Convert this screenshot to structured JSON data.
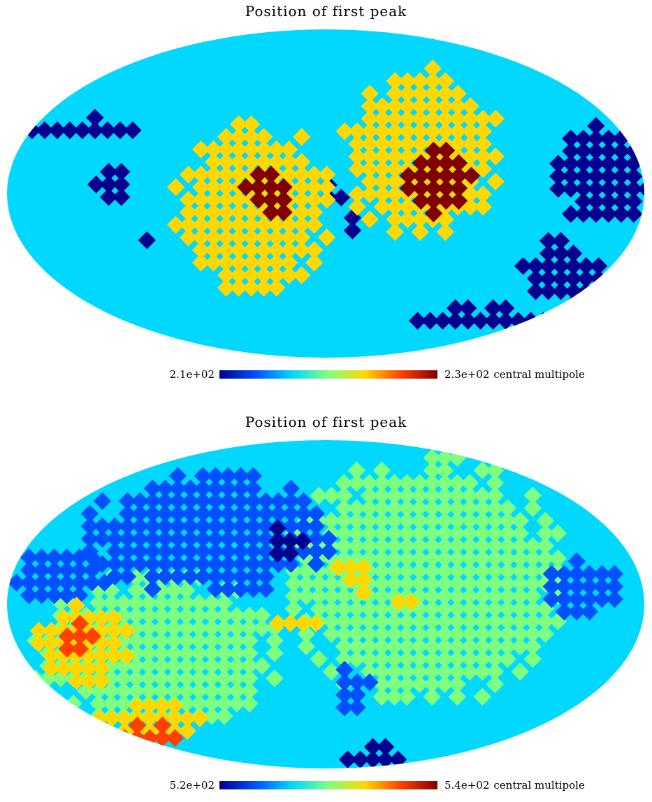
{
  "colors": {
    "ocean": "#00d8ff",
    "colormap": [
      "#00008f",
      "#0050ff",
      "#00d8ff",
      "#7fff7f",
      "#ffd800",
      "#ff4000",
      "#800000"
    ]
  },
  "chart_data": [
    {
      "type": "heatmap",
      "projection": "mollweide",
      "title": "Position of first peak",
      "colorbar": {
        "min_label": "2.1e+02",
        "max_label": "2.3e+02",
        "unit": "central multipole"
      },
      "regions": [
        {
          "color": "#00008f",
          "cx": -0.82,
          "cy": 0.42,
          "rx": 0.2,
          "ry": 0.08
        },
        {
          "color": "#00008f",
          "cx": -0.68,
          "cy": 0.08,
          "rx": 0.06,
          "ry": 0.09
        },
        {
          "color": "#00008f",
          "cx": -0.58,
          "cy": -0.22,
          "rx": 0.04,
          "ry": 0.05
        },
        {
          "color": "#00008f",
          "cx": 0.85,
          "cy": 0.15,
          "rx": 0.14,
          "ry": 0.3
        },
        {
          "color": "#00008f",
          "cx": 0.72,
          "cy": -0.45,
          "rx": 0.12,
          "ry": 0.2
        },
        {
          "color": "#00008f",
          "cx": 0.45,
          "cy": -0.72,
          "rx": 0.26,
          "ry": 0.06
        },
        {
          "color": "#00008f",
          "cx": 0.0,
          "cy": 0.04,
          "rx": 0.05,
          "ry": 0.05
        },
        {
          "color": "#00008f",
          "cx": 0.06,
          "cy": -0.16,
          "rx": 0.035,
          "ry": 0.05
        },
        {
          "color": "#ffd800",
          "cx": -0.25,
          "cy": -0.06,
          "rx": 0.24,
          "ry": 0.52
        },
        {
          "color": "#ffd800",
          "cx": 0.28,
          "cy": 0.28,
          "rx": 0.24,
          "ry": 0.52
        },
        {
          "color": "#800000",
          "cx": -0.2,
          "cy": 0.06,
          "rx": 0.07,
          "ry": 0.17
        },
        {
          "color": "#800000",
          "cx": 0.34,
          "cy": 0.1,
          "rx": 0.1,
          "ry": 0.2
        }
      ]
    },
    {
      "type": "heatmap",
      "projection": "mollweide",
      "title": "Position of first peak",
      "colorbar": {
        "min_label": "5.2e+02",
        "max_label": "5.4e+02",
        "unit": "central multipole"
      },
      "regions": [
        {
          "color": "#7fff7f",
          "cx": 0.3,
          "cy": 0.18,
          "rx": 0.42,
          "ry": 0.75
        },
        {
          "color": "#7fff7f",
          "cx": -0.55,
          "cy": -0.25,
          "rx": 0.38,
          "ry": 0.45
        },
        {
          "color": "#0050ff",
          "cx": -0.38,
          "cy": 0.46,
          "rx": 0.38,
          "ry": 0.36
        },
        {
          "color": "#0050ff",
          "cx": -0.85,
          "cy": 0.22,
          "rx": 0.14,
          "ry": 0.18
        },
        {
          "color": "#0050ff",
          "cx": 0.78,
          "cy": 0.12,
          "rx": 0.13,
          "ry": 0.18
        },
        {
          "color": "#0050ff",
          "cx": 0.06,
          "cy": -0.48,
          "rx": 0.06,
          "ry": 0.12
        },
        {
          "color": "#00008f",
          "cx": -0.15,
          "cy": 0.4,
          "rx": 0.06,
          "ry": 0.1
        },
        {
          "color": "#00008f",
          "cx": 0.15,
          "cy": -0.88,
          "rx": 0.14,
          "ry": 0.05
        },
        {
          "color": "#ffd800",
          "cx": -0.78,
          "cy": -0.22,
          "rx": 0.14,
          "ry": 0.25
        },
        {
          "color": "#ffd800",
          "cx": -0.55,
          "cy": -0.68,
          "rx": 0.18,
          "ry": 0.1
        },
        {
          "color": "#ffd800",
          "cx": 0.08,
          "cy": 0.22,
          "rx": 0.06,
          "ry": 0.12
        },
        {
          "color": "#ffd800",
          "cx": 0.22,
          "cy": 0.05,
          "rx": 0.05,
          "ry": 0.08
        },
        {
          "color": "#ffd800",
          "cx": -0.1,
          "cy": -0.06,
          "rx": 0.07,
          "ry": 0.06
        },
        {
          "color": "#ff4000",
          "cx": -0.8,
          "cy": -0.18,
          "rx": 0.07,
          "ry": 0.1
        },
        {
          "color": "#ff4000",
          "cx": -0.57,
          "cy": -0.75,
          "rx": 0.12,
          "ry": 0.05
        },
        {
          "color": "#ff4000",
          "cx": 0.2,
          "cy": 0.06,
          "rx": 0.025,
          "ry": 0.04
        },
        {
          "color": "#800000",
          "cx": 0.05,
          "cy": 0.22,
          "rx": 0.02,
          "ry": 0.04
        }
      ]
    }
  ]
}
